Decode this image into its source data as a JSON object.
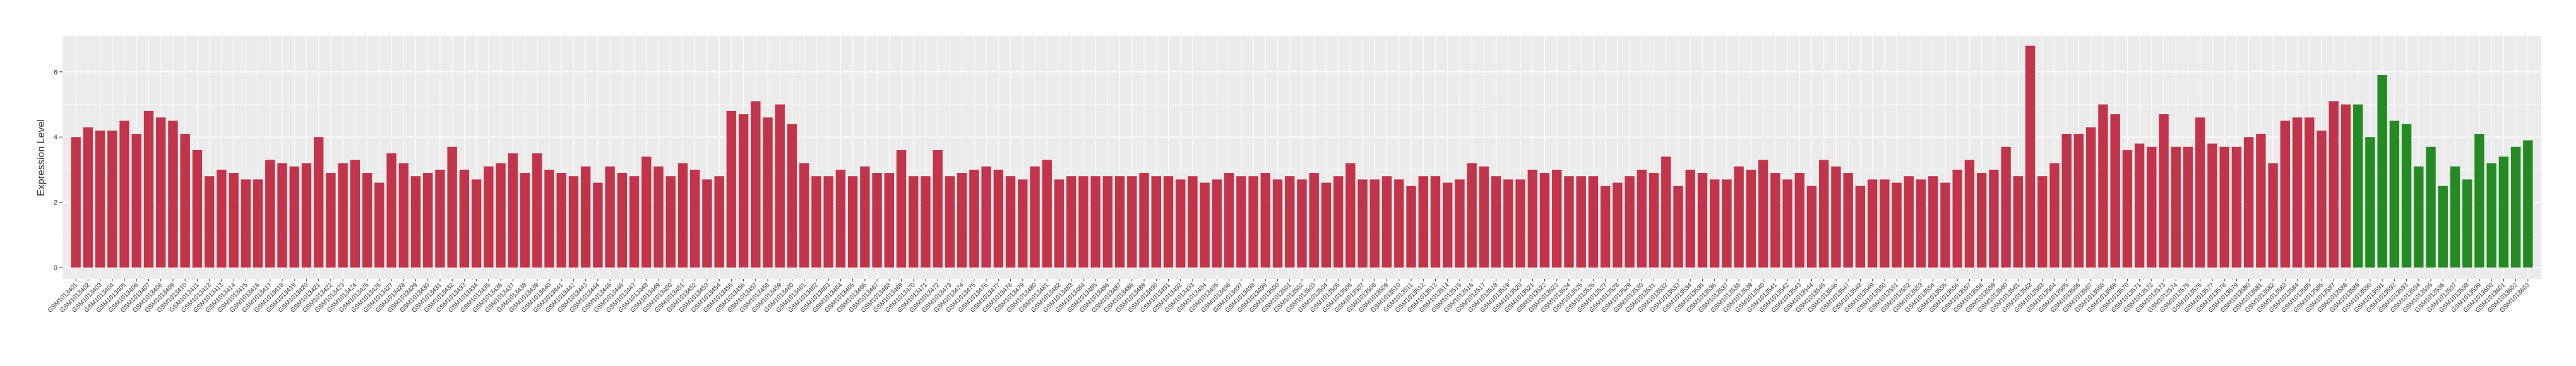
{
  "chart_data": {
    "type": "bar",
    "y_label": "Expression Level",
    "ylim": [
      -0.35,
      7.1
    ],
    "yticks": [
      0,
      2,
      4,
      6
    ],
    "grid": true,
    "categories": [
      "GSM1013401",
      "GSM1013402",
      "GSM1013403",
      "GSM1013404",
      "GSM1013405",
      "GSM1013406",
      "GSM1013407",
      "GSM1013408",
      "GSM1013409",
      "GSM1013410",
      "GSM1013411",
      "GSM1013412",
      "GSM1013413",
      "GSM1013414",
      "GSM1013415",
      "GSM1013416",
      "GSM1013417",
      "GSM1013418",
      "GSM1013419",
      "GSM1013420",
      "GSM1013421",
      "GSM1013422",
      "GSM1013423",
      "GSM1013424",
      "GSM1013425",
      "GSM1013426",
      "GSM1013427",
      "GSM1013428",
      "GSM1013429",
      "GSM1013430",
      "GSM1013431",
      "GSM1013432",
      "GSM1013433",
      "GSM1013434",
      "GSM1013435",
      "GSM1013436",
      "GSM1013437",
      "GSM1013438",
      "GSM1013439",
      "GSM1013440",
      "GSM1013441",
      "GSM1013442",
      "GSM1013443",
      "GSM1013444",
      "GSM1013445",
      "GSM1013446",
      "GSM1013447",
      "GSM1013448",
      "GSM1013449",
      "GSM1013450",
      "GSM1013451",
      "GSM1013452",
      "GSM1013453",
      "GSM1013454",
      "GSM1013455",
      "GSM1013456",
      "GSM1013457",
      "GSM1013458",
      "GSM1013459",
      "GSM1013460",
      "GSM1013461",
      "GSM1013462",
      "GSM1013463",
      "GSM1013464",
      "GSM1013465",
      "GSM1013466",
      "GSM1013467",
      "GSM1013468",
      "GSM1013469",
      "GSM1013470",
      "GSM1013471",
      "GSM1013472",
      "GSM1013473",
      "GSM1013474",
      "GSM1013475",
      "GSM1013476",
      "GSM1013477",
      "GSM1013478",
      "GSM1013479",
      "GSM1013480",
      "GSM1013481",
      "GSM1013482",
      "GSM1013483",
      "GSM1013484",
      "GSM1013485",
      "GSM1013486",
      "GSM1013487",
      "GSM1013488",
      "GSM1013489",
      "GSM1013490",
      "GSM1013491",
      "GSM1013492",
      "GSM1013493",
      "GSM1013494",
      "GSM1013495",
      "GSM1013496",
      "GSM1013497",
      "GSM1013498",
      "GSM1013499",
      "GSM1013500",
      "GSM1013501",
      "GSM1013502",
      "GSM1013503",
      "GSM1013504",
      "GSM1013505",
      "GSM1013506",
      "GSM1013507",
      "GSM1013508",
      "GSM1013509",
      "GSM1013510",
      "GSM1013511",
      "GSM1013512",
      "GSM1013513",
      "GSM1013514",
      "GSM1013515",
      "GSM1013516",
      "GSM1013517",
      "GSM1013518",
      "GSM1013519",
      "GSM1013520",
      "GSM1013521",
      "GSM1013522",
      "GSM1013523",
      "GSM1013524",
      "GSM1013525",
      "GSM1013526",
      "GSM1013527",
      "GSM1013528",
      "GSM1013529",
      "GSM1013530",
      "GSM1013531",
      "GSM1013532",
      "GSM1013533",
      "GSM1013534",
      "GSM1013535",
      "GSM1013536",
      "GSM1013537",
      "GSM1013538",
      "GSM1013539",
      "GSM1013540",
      "GSM1013541",
      "GSM1013542",
      "GSM1013543",
      "GSM1013544",
      "GSM1013545",
      "GSM1013546",
      "GSM1013547",
      "GSM1013548",
      "GSM1013549",
      "GSM1013550",
      "GSM1013551",
      "GSM1013552",
      "GSM1013553",
      "GSM1013554",
      "GSM1013555",
      "GSM1013556",
      "GSM1013557",
      "GSM1013558",
      "GSM1013559",
      "GSM1013560",
      "GSM1013561",
      "GSM1013562",
      "GSM1013563",
      "GSM1013564",
      "GSM1013565",
      "GSM1013566",
      "GSM1013567",
      "GSM1013568",
      "GSM1013569",
      "GSM1013570",
      "GSM1013571",
      "GSM1013572",
      "GSM1013573",
      "GSM1013574",
      "GSM1013575",
      "GSM1013576",
      "GSM1013577",
      "GSM1013578",
      "GSM1013579",
      "GSM1013580",
      "GSM1013581",
      "GSM1013582",
      "GSM1013583",
      "GSM1013584",
      "GSM1013585",
      "GSM1013586",
      "GSM1013587",
      "GSM1013588",
      "GSM1013589",
      "GSM1013590",
      "GSM1013591",
      "GSM1013592",
      "GSM1013593",
      "GSM1013594",
      "GSM1013595",
      "GSM1013596",
      "GSM1013597",
      "GSM1013598",
      "GSM1013599",
      "GSM1013600",
      "GSM1013601",
      "GSM1013602",
      "GSM1013603"
    ],
    "values": [
      4.0,
      4.3,
      4.2,
      4.2,
      4.5,
      4.1,
      4.8,
      4.6,
      4.5,
      4.1,
      3.6,
      2.8,
      3.0,
      2.9,
      2.7,
      2.7,
      3.3,
      3.2,
      3.1,
      3.2,
      4.0,
      2.9,
      3.2,
      3.3,
      2.9,
      2.6,
      3.5,
      3.2,
      2.8,
      2.9,
      3.0,
      3.7,
      3.0,
      2.7,
      3.1,
      3.2,
      3.5,
      2.9,
      3.5,
      3.0,
      2.9,
      2.8,
      3.1,
      2.6,
      3.1,
      2.9,
      2.8,
      3.4,
      3.1,
      2.8,
      3.2,
      3.0,
      2.7,
      2.8,
      4.8,
      4.7,
      5.1,
      4.6,
      5.0,
      4.4,
      3.2,
      2.8,
      2.8,
      3.0,
      2.8,
      3.1,
      2.9,
      2.9,
      3.6,
      2.8,
      2.8,
      3.6,
      2.8,
      2.9,
      3.0,
      3.1,
      3.0,
      2.8,
      2.7,
      3.1,
      3.3,
      2.7,
      2.8,
      2.8,
      2.8,
      2.8,
      2.8,
      2.8,
      2.9,
      2.8,
      2.8,
      2.7,
      2.8,
      2.6,
      2.7,
      2.9,
      2.8,
      2.8,
      2.9,
      2.7,
      2.8,
      2.7,
      2.9,
      2.6,
      2.8,
      3.2,
      2.7,
      2.7,
      2.8,
      2.7,
      2.5,
      2.8,
      2.8,
      2.6,
      2.7,
      3.2,
      3.1,
      2.8,
      2.7,
      2.7,
      3.0,
      2.9,
      3.0,
      2.8,
      2.8,
      2.8,
      2.5,
      2.6,
      2.8,
      3.0,
      2.9,
      3.4,
      2.5,
      3.0,
      2.9,
      2.7,
      2.7,
      3.1,
      3.0,
      3.3,
      2.9,
      2.7,
      2.9,
      2.5,
      3.3,
      3.1,
      2.9,
      2.5,
      2.7,
      2.7,
      2.6,
      2.8,
      2.7,
      2.8,
      2.6,
      3.0,
      3.3,
      2.9,
      3.0,
      3.7,
      2.8,
      6.8,
      2.8,
      3.2,
      4.1,
      4.1,
      4.3,
      5.0,
      4.7,
      3.6,
      3.8,
      3.7,
      4.7,
      3.7,
      3.7,
      4.6,
      3.8,
      3.7,
      3.7,
      4.0,
      4.1,
      3.2,
      4.5,
      4.6,
      4.6,
      4.2,
      5.1,
      5.0,
      5.0,
      4.0,
      5.9,
      4.5,
      4.4,
      3.1,
      3.7,
      2.5,
      3.1,
      2.7,
      4.1,
      3.2,
      3.4,
      3.7,
      3.9
    ],
    "colors": [
      "#c13449",
      "#c13449",
      "#c13449",
      "#c13449",
      "#c13449",
      "#c13449",
      "#c13449",
      "#c13449",
      "#c13449",
      "#c13449",
      "#c13449",
      "#c13449",
      "#c13449",
      "#c13449",
      "#c13449",
      "#c13449",
      "#c13449",
      "#c13449",
      "#c13449",
      "#c13449",
      "#c13449",
      "#c13449",
      "#c13449",
      "#c13449",
      "#c13449",
      "#c13449",
      "#c13449",
      "#c13449",
      "#c13449",
      "#c13449",
      "#c13449",
      "#c13449",
      "#c13449",
      "#c13449",
      "#c13449",
      "#c13449",
      "#c13449",
      "#c13449",
      "#c13449",
      "#c13449",
      "#c13449",
      "#c13449",
      "#c13449",
      "#c13449",
      "#c13449",
      "#c13449",
      "#c13449",
      "#c13449",
      "#c13449",
      "#c13449",
      "#c13449",
      "#c13449",
      "#c13449",
      "#c13449",
      "#c13449",
      "#c13449",
      "#c13449",
      "#c13449",
      "#c13449",
      "#c13449",
      "#c13449",
      "#c13449",
      "#c13449",
      "#c13449",
      "#c13449",
      "#c13449",
      "#c13449",
      "#c13449",
      "#c13449",
      "#c13449",
      "#c13449",
      "#c13449",
      "#c13449",
      "#c13449",
      "#c13449",
      "#c13449",
      "#c13449",
      "#c13449",
      "#c13449",
      "#c13449",
      "#c13449",
      "#c13449",
      "#c13449",
      "#c13449",
      "#c13449",
      "#c13449",
      "#c13449",
      "#c13449",
      "#c13449",
      "#c13449",
      "#c13449",
      "#c13449",
      "#c13449",
      "#c13449",
      "#c13449",
      "#c13449",
      "#c13449",
      "#c13449",
      "#c13449",
      "#c13449",
      "#c13449",
      "#c13449",
      "#c13449",
      "#c13449",
      "#c13449",
      "#c13449",
      "#c13449",
      "#c13449",
      "#c13449",
      "#c13449",
      "#c13449",
      "#c13449",
      "#c13449",
      "#c13449",
      "#c13449",
      "#c13449",
      "#c13449",
      "#c13449",
      "#c13449",
      "#c13449",
      "#c13449",
      "#c13449",
      "#c13449",
      "#c13449",
      "#c13449",
      "#c13449",
      "#c13449",
      "#c13449",
      "#c13449",
      "#c13449",
      "#c13449",
      "#c13449",
      "#c13449",
      "#c13449",
      "#c13449",
      "#c13449",
      "#c13449",
      "#c13449",
      "#c13449",
      "#c13449",
      "#c13449",
      "#c13449",
      "#c13449",
      "#c13449",
      "#c13449",
      "#c13449",
      "#c13449",
      "#c13449",
      "#c13449",
      "#c13449",
      "#c13449",
      "#c13449",
      "#c13449",
      "#c13449",
      "#c13449",
      "#c13449",
      "#c13449",
      "#c13449",
      "#c13449",
      "#c13449",
      "#c13449",
      "#c13449",
      "#c13449",
      "#c13449",
      "#c13449",
      "#c13449",
      "#c13449",
      "#c13449",
      "#c13449",
      "#c13449",
      "#c13449",
      "#c13449",
      "#c13449",
      "#c13449",
      "#c13449",
      "#c13449",
      "#c13449",
      "#c13449",
      "#c13449",
      "#c13449",
      "#c13449",
      "#c13449",
      "#c13449",
      "#c13449",
      "#c13449",
      "#c13449",
      "#c13449",
      "#c13449",
      "#238b22",
      "#238b22",
      "#238b22",
      "#238b22",
      "#238b22",
      "#238b22",
      "#238b22",
      "#238b22",
      "#238b22",
      "#238b22",
      "#238b22",
      "#238b22",
      "#238b22",
      "#238b22",
      "#238b22",
      "#238b22",
      "#238b22",
      "#238b22",
      "#238b22",
      "#238b22",
      "#238b22"
    ]
  }
}
